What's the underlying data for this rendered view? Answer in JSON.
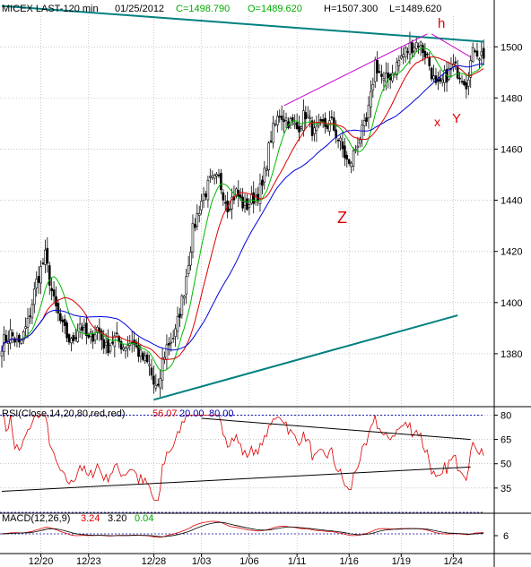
{
  "header": {
    "symbol": "MICEX LAST-120 min",
    "date": "01/25/2012",
    "close": "C=1498.790",
    "open": "O=1489.620",
    "high": "H=1507.300",
    "low": "L=1489.620"
  },
  "annotations": {
    "h": "h",
    "x": "x",
    "y": "Y",
    "z": "Z"
  },
  "rsi_header": {
    "label": "RSI(Close,14,20,80,red,red)",
    "value": "56.07",
    "lower": "20.00",
    "upper": "80.00"
  },
  "macd_header": {
    "label": "MACD(12,26,9)",
    "macd": "3.24",
    "signal": "3.20",
    "hist": "0.04"
  },
  "colors": {
    "candle": "#000000",
    "ma_fast": "#00bb00",
    "ma_mid": "#dd0000",
    "ma_slow": "#0000dd",
    "trendline": "#008080",
    "wedge": "#cc00cc",
    "annotation": "#dd0000",
    "guide": "#0000aa",
    "rsi_line": "#dd0000"
  },
  "chart_data": [
    {
      "type": "candlestick",
      "name": "price",
      "x_tick_labels": [
        "12/20",
        "12/23",
        "12/28",
        "1/03",
        "1/06",
        "1/11",
        "1/16",
        "1/19",
        "1/24"
      ],
      "y_ticks": [
        1380,
        1400,
        1420,
        1440,
        1460,
        1480,
        1500
      ],
      "ylim": [
        1360,
        1512
      ],
      "grid": true,
      "waypoints": [
        [
          0,
          1384
        ],
        [
          4,
          1388
        ],
        [
          8,
          1383
        ],
        [
          12,
          1392
        ],
        [
          16,
          1408
        ],
        [
          20,
          1418
        ],
        [
          24,
          1400
        ],
        [
          28,
          1390
        ],
        [
          32,
          1384
        ],
        [
          36,
          1392
        ],
        [
          40,
          1385
        ],
        [
          44,
          1390
        ],
        [
          48,
          1382
        ],
        [
          52,
          1386
        ],
        [
          56,
          1383
        ],
        [
          60,
          1385
        ],
        [
          64,
          1379
        ],
        [
          68,
          1375
        ],
        [
          70,
          1368
        ],
        [
          72,
          1365
        ],
        [
          74,
          1377
        ],
        [
          76,
          1383
        ],
        [
          80,
          1388
        ],
        [
          84,
          1405
        ],
        [
          88,
          1428
        ],
        [
          92,
          1440
        ],
        [
          96,
          1447
        ],
        [
          100,
          1448
        ],
        [
          104,
          1438
        ],
        [
          108,
          1443
        ],
        [
          112,
          1437
        ],
        [
          116,
          1441
        ],
        [
          120,
          1445
        ],
        [
          124,
          1465
        ],
        [
          128,
          1474
        ],
        [
          132,
          1471
        ],
        [
          136,
          1468
        ],
        [
          140,
          1474
        ],
        [
          144,
          1466
        ],
        [
          148,
          1469
        ],
        [
          152,
          1470
        ],
        [
          156,
          1462
        ],
        [
          160,
          1453
        ],
        [
          162,
          1458
        ],
        [
          164,
          1463
        ],
        [
          168,
          1470
        ],
        [
          170,
          1480
        ],
        [
          172,
          1494
        ],
        [
          176,
          1486
        ],
        [
          180,
          1490
        ],
        [
          184,
          1496
        ],
        [
          188,
          1500
        ],
        [
          192,
          1502
        ],
        [
          196,
          1496
        ],
        [
          200,
          1484
        ],
        [
          202,
          1484
        ],
        [
          204,
          1488
        ],
        [
          208,
          1492
        ],
        [
          212,
          1489
        ],
        [
          214,
          1486
        ],
        [
          216,
          1494
        ],
        [
          218,
          1500
        ],
        [
          220,
          1497
        ],
        [
          222,
          1497
        ]
      ],
      "moving_averages": [
        {
          "color": "green",
          "period": 10
        },
        {
          "color": "red",
          "period": 20
        },
        {
          "color": "blue",
          "period": 40
        }
      ],
      "trendlines": [
        {
          "kind": "upper",
          "from": [
            0,
            1516
          ],
          "to": [
            222,
            1502
          ]
        },
        {
          "kind": "lower",
          "from": [
            70,
            1362
          ],
          "to": [
            210,
            1395
          ]
        },
        {
          "kind": "wedge-top",
          "from": [
            130,
            1477
          ],
          "to": [
            196,
            1505
          ]
        },
        {
          "kind": "wedge-bottom",
          "from": [
            198,
            1505
          ],
          "to": [
            216,
            1496
          ]
        }
      ]
    },
    {
      "type": "line",
      "name": "RSI",
      "y_ticks": [
        35,
        50,
        65,
        80
      ],
      "ylim": [
        20,
        83
      ],
      "levels": [
        20,
        80
      ],
      "last_value": 56.07,
      "trendlines": [
        {
          "kind": "upper",
          "from": [
            92,
            78
          ],
          "to": [
            216,
            65
          ]
        },
        {
          "kind": "lower",
          "from": [
            0,
            33
          ],
          "to": [
            216,
            48
          ]
        }
      ]
    },
    {
      "type": "line",
      "name": "MACD",
      "y_ticks": [
        6
      ],
      "macd": 3.24,
      "signal": 3.2,
      "histogram": 0.04
    }
  ]
}
